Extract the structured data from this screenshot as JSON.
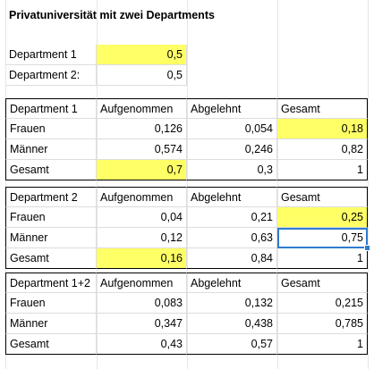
{
  "title": "Privatuniversität mit zwei Departments",
  "params": [
    {
      "label": "Department 1",
      "value": "0,5",
      "highlight": true
    },
    {
      "label": "Department 2:",
      "value": "0,5",
      "highlight": false
    }
  ],
  "tables": [
    {
      "headers": [
        "Department 1",
        "Aufgenommen",
        "Abgelehnt",
        "Gesamt"
      ],
      "rows": [
        {
          "label": "Frauen",
          "values": [
            "0,126",
            "0,054",
            "0,18"
          ],
          "highlight": [
            false,
            false,
            true
          ]
        },
        {
          "label": "Männer",
          "values": [
            "0,574",
            "0,246",
            "0,82"
          ],
          "highlight": [
            false,
            false,
            false
          ]
        },
        {
          "label": "Gesamt",
          "values": [
            "0,7",
            "0,3",
            "1"
          ],
          "highlight": [
            true,
            false,
            false
          ]
        }
      ]
    },
    {
      "headers": [
        "Department 2",
        "Aufgenommen",
        "Abgelehnt",
        "Gesamt"
      ],
      "rows": [
        {
          "label": "Frauen",
          "values": [
            "0,04",
            "0,21",
            "0,25"
          ],
          "highlight": [
            false,
            false,
            true
          ]
        },
        {
          "label": "Männer",
          "values": [
            "0,12",
            "0,63",
            "0,75"
          ],
          "highlight": [
            false,
            false,
            false
          ],
          "selected": 2
        },
        {
          "label": "Gesamt",
          "values": [
            "0,16",
            "0,84",
            "1"
          ],
          "highlight": [
            true,
            false,
            false
          ]
        }
      ]
    },
    {
      "headers": [
        "Department 1+2",
        "Aufgenommen",
        "Abgelehnt",
        "Gesamt"
      ],
      "rows": [
        {
          "label": "Frauen",
          "values": [
            "0,083",
            "0,132",
            "0,215"
          ],
          "highlight": [
            false,
            false,
            false
          ]
        },
        {
          "label": "Männer",
          "values": [
            "0,347",
            "0,438",
            "0,785"
          ],
          "highlight": [
            false,
            false,
            false
          ]
        },
        {
          "label": "Gesamt",
          "values": [
            "0,43",
            "0,57",
            "1"
          ],
          "highlight": [
            false,
            false,
            false
          ]
        }
      ]
    }
  ]
}
